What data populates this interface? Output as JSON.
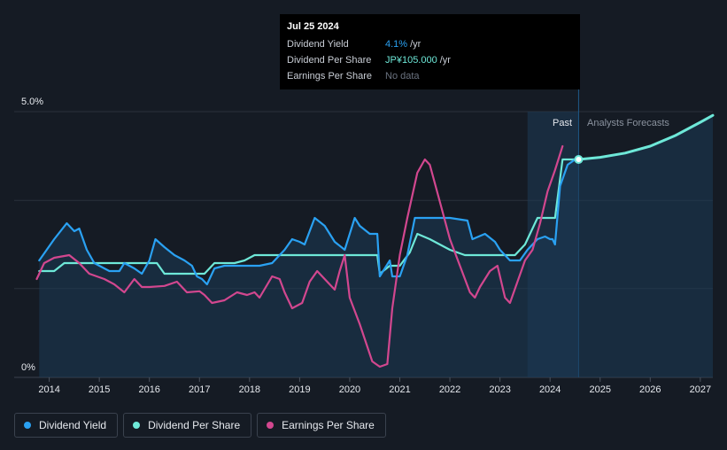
{
  "tooltip": {
    "date": "Jul 25 2024",
    "rows": [
      {
        "label": "Dividend Yield",
        "value": "4.1%",
        "unit": "/yr"
      },
      {
        "label": "Dividend Per Share",
        "value": "JP¥105.000",
        "unit": "/yr"
      },
      {
        "label": "Earnings Per Share",
        "value": "No data",
        "unit": ""
      }
    ]
  },
  "legend": [
    {
      "label": "Dividend Yield",
      "color": "#2aa1f2"
    },
    {
      "label": "Dividend Per Share",
      "color": "#6ee8d8"
    },
    {
      "label": "Earnings Per Share",
      "color": "#d2478f"
    }
  ],
  "regions": {
    "past": "Past",
    "forecast": "Analysts Forecasts"
  },
  "chart_data": {
    "type": "line",
    "y_tick_labels": [
      "5.0%",
      "0%"
    ],
    "ylim": [
      0,
      5
    ],
    "xlim": [
      2013.3,
      2027.25
    ],
    "x_tick_labels": [
      "2014",
      "2015",
      "2016",
      "2017",
      "2018",
      "2019",
      "2020",
      "2021",
      "2022",
      "2023",
      "2024",
      "2025",
      "2026",
      "2027"
    ],
    "x_ticks": [
      2014,
      2015,
      2016,
      2017,
      2018,
      2019,
      2020,
      2021,
      2022,
      2023,
      2024,
      2025,
      2026,
      2027
    ],
    "past_region": [
      2023.55,
      2024.57
    ],
    "series": [
      {
        "name": "Dividend Yield",
        "color": "#2aa1f2",
        "points": [
          [
            2013.8,
            2.2
          ],
          [
            2014.1,
            2.6
          ],
          [
            2014.35,
            2.9
          ],
          [
            2014.5,
            2.75
          ],
          [
            2014.6,
            2.8
          ],
          [
            2014.75,
            2.4
          ],
          [
            2014.9,
            2.15
          ],
          [
            2015.2,
            2.0
          ],
          [
            2015.4,
            2.0
          ],
          [
            2015.5,
            2.15
          ],
          [
            2015.7,
            2.05
          ],
          [
            2015.85,
            1.95
          ],
          [
            2016.0,
            2.2
          ],
          [
            2016.12,
            2.6
          ],
          [
            2016.3,
            2.45
          ],
          [
            2016.5,
            2.3
          ],
          [
            2016.7,
            2.2
          ],
          [
            2016.85,
            2.1
          ],
          [
            2016.95,
            1.9
          ],
          [
            2017.05,
            1.85
          ],
          [
            2017.15,
            1.75
          ],
          [
            2017.3,
            2.05
          ],
          [
            2017.5,
            2.1
          ],
          [
            2017.75,
            2.1
          ],
          [
            2018.0,
            2.1
          ],
          [
            2018.2,
            2.1
          ],
          [
            2018.45,
            2.15
          ],
          [
            2018.7,
            2.4
          ],
          [
            2018.85,
            2.6
          ],
          [
            2019.0,
            2.55
          ],
          [
            2019.1,
            2.5
          ],
          [
            2019.3,
            3.0
          ],
          [
            2019.5,
            2.85
          ],
          [
            2019.7,
            2.55
          ],
          [
            2019.9,
            2.4
          ],
          [
            2020.1,
            3.0
          ],
          [
            2020.2,
            2.85
          ],
          [
            2020.4,
            2.7
          ],
          [
            2020.55,
            2.7
          ],
          [
            2020.6,
            1.9
          ],
          [
            2020.8,
            2.2
          ],
          [
            2020.85,
            1.9
          ],
          [
            2021.0,
            1.9
          ],
          [
            2021.15,
            2.3
          ],
          [
            2021.3,
            3.0
          ],
          [
            2021.45,
            3.0
          ],
          [
            2021.7,
            3.0
          ],
          [
            2022.0,
            3.0
          ],
          [
            2022.35,
            2.95
          ],
          [
            2022.45,
            2.6
          ],
          [
            2022.7,
            2.7
          ],
          [
            2022.9,
            2.55
          ],
          [
            2023.0,
            2.4
          ],
          [
            2023.2,
            2.2
          ],
          [
            2023.4,
            2.2
          ],
          [
            2023.55,
            2.4
          ],
          [
            2023.75,
            2.6
          ],
          [
            2023.9,
            2.65
          ],
          [
            2024.0,
            2.6
          ],
          [
            2024.05,
            2.6
          ],
          [
            2024.1,
            2.5
          ],
          [
            2024.2,
            3.6
          ],
          [
            2024.35,
            4.0
          ],
          [
            2024.5,
            4.1
          ],
          [
            2024.57,
            4.1
          ]
        ]
      },
      {
        "name": "Dividend Per Share",
        "color": "#6ee8d8",
        "points": [
          [
            2013.8,
            2.0
          ],
          [
            2014.1,
            2.0
          ],
          [
            2014.3,
            2.15
          ],
          [
            2014.5,
            2.15
          ],
          [
            2015.0,
            2.15
          ],
          [
            2015.5,
            2.15
          ],
          [
            2016.0,
            2.15
          ],
          [
            2016.15,
            2.15
          ],
          [
            2016.3,
            1.95
          ],
          [
            2016.9,
            1.95
          ],
          [
            2017.1,
            1.95
          ],
          [
            2017.3,
            2.15
          ],
          [
            2017.7,
            2.15
          ],
          [
            2017.9,
            2.2
          ],
          [
            2018.1,
            2.3
          ],
          [
            2018.5,
            2.3
          ],
          [
            2019.0,
            2.3
          ],
          [
            2019.5,
            2.3
          ],
          [
            2020.0,
            2.3
          ],
          [
            2020.55,
            2.3
          ],
          [
            2020.6,
            1.95
          ],
          [
            2020.8,
            2.1
          ],
          [
            2021.0,
            2.1
          ],
          [
            2021.2,
            2.35
          ],
          [
            2021.35,
            2.7
          ],
          [
            2021.6,
            2.6
          ],
          [
            2021.9,
            2.45
          ],
          [
            2022.0,
            2.4
          ],
          [
            2022.3,
            2.3
          ],
          [
            2022.7,
            2.3
          ],
          [
            2023.0,
            2.3
          ],
          [
            2023.3,
            2.3
          ],
          [
            2023.5,
            2.5
          ],
          [
            2023.75,
            3.0
          ],
          [
            2024.1,
            3.0
          ],
          [
            2024.25,
            4.1
          ],
          [
            2024.57,
            4.1
          ]
        ]
      },
      {
        "name": "Earnings Per Share",
        "color": "#d2478f",
        "points": [
          [
            2013.75,
            1.85
          ],
          [
            2013.9,
            2.15
          ],
          [
            2014.1,
            2.25
          ],
          [
            2014.4,
            2.3
          ],
          [
            2014.6,
            2.15
          ],
          [
            2014.8,
            1.95
          ],
          [
            2015.1,
            1.85
          ],
          [
            2015.3,
            1.75
          ],
          [
            2015.5,
            1.6
          ],
          [
            2015.7,
            1.85
          ],
          [
            2015.85,
            1.7
          ],
          [
            2016.0,
            1.7
          ],
          [
            2016.3,
            1.72
          ],
          [
            2016.55,
            1.8
          ],
          [
            2016.75,
            1.6
          ],
          [
            2017.0,
            1.62
          ],
          [
            2017.1,
            1.55
          ],
          [
            2017.25,
            1.4
          ],
          [
            2017.5,
            1.45
          ],
          [
            2017.75,
            1.6
          ],
          [
            2017.95,
            1.55
          ],
          [
            2018.1,
            1.6
          ],
          [
            2018.2,
            1.5
          ],
          [
            2018.45,
            1.9
          ],
          [
            2018.6,
            1.85
          ],
          [
            2018.7,
            1.6
          ],
          [
            2018.85,
            1.3
          ],
          [
            2019.05,
            1.4
          ],
          [
            2019.2,
            1.8
          ],
          [
            2019.35,
            2.0
          ],
          [
            2019.55,
            1.8
          ],
          [
            2019.7,
            1.65
          ],
          [
            2019.8,
            2.0
          ],
          [
            2019.9,
            2.3
          ],
          [
            2020.0,
            1.5
          ],
          [
            2020.2,
            1.0
          ],
          [
            2020.45,
            0.3
          ],
          [
            2020.6,
            0.2
          ],
          [
            2020.75,
            0.25
          ],
          [
            2020.85,
            1.3
          ],
          [
            2021.0,
            2.3
          ],
          [
            2021.15,
            3.0
          ],
          [
            2021.35,
            3.85
          ],
          [
            2021.5,
            4.1
          ],
          [
            2021.6,
            4.0
          ],
          [
            2021.8,
            3.3
          ],
          [
            2022.0,
            2.6
          ],
          [
            2022.2,
            2.1
          ],
          [
            2022.4,
            1.6
          ],
          [
            2022.5,
            1.5
          ],
          [
            2022.6,
            1.7
          ],
          [
            2022.8,
            2.0
          ],
          [
            2022.95,
            2.1
          ],
          [
            2023.1,
            1.5
          ],
          [
            2023.2,
            1.4
          ],
          [
            2023.35,
            1.8
          ],
          [
            2023.5,
            2.2
          ],
          [
            2023.65,
            2.4
          ],
          [
            2023.8,
            2.9
          ],
          [
            2023.95,
            3.5
          ],
          [
            2024.1,
            3.9
          ],
          [
            2024.25,
            4.35
          ]
        ]
      },
      {
        "name": "Dividend Per Share (forecast)",
        "color": "#6ee8d8",
        "points": [
          [
            2024.57,
            4.1
          ],
          [
            2025.0,
            4.14
          ],
          [
            2025.5,
            4.22
          ],
          [
            2026.0,
            4.35
          ],
          [
            2026.5,
            4.55
          ],
          [
            2027.0,
            4.8
          ],
          [
            2027.25,
            4.93
          ]
        ]
      }
    ]
  }
}
